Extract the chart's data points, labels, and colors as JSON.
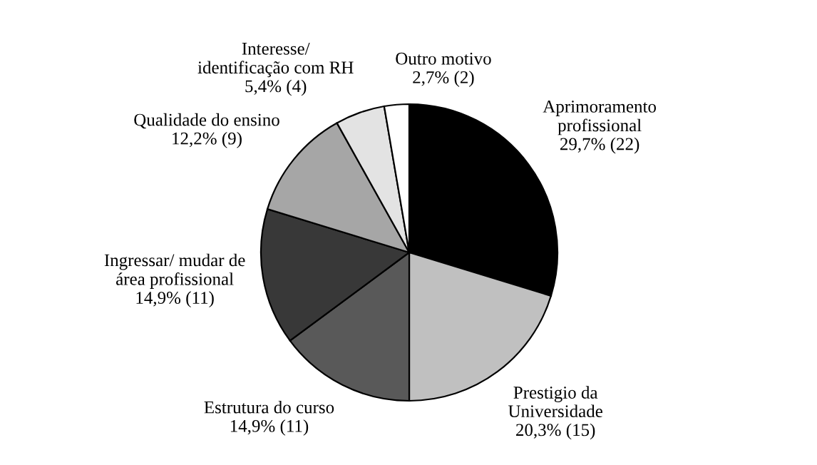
{
  "chart_data": {
    "type": "pie",
    "categories": [
      "Aprimoramento\nprofissional",
      "Prestigio da\nUniversidade",
      "Estrutura do curso",
      "Ingressar/ mudar de\nárea profissional",
      "Qualidade do ensino",
      "Interesse/\nidentificação com RH",
      "Outro motivo"
    ],
    "values": [
      22,
      15,
      11,
      11,
      9,
      4,
      2
    ],
    "value_labels": [
      "29,7% (22)",
      "20,3% (15)",
      "14,9% (11)",
      "14,9% (11)",
      "12,2% (9)",
      "5,4% (4)",
      "2,7% (2)"
    ],
    "colors": [
      "#000000",
      "#c0c0c0",
      "#595959",
      "#383838",
      "#a6a6a6",
      "#e3e3e3",
      "#ffffff"
    ]
  }
}
